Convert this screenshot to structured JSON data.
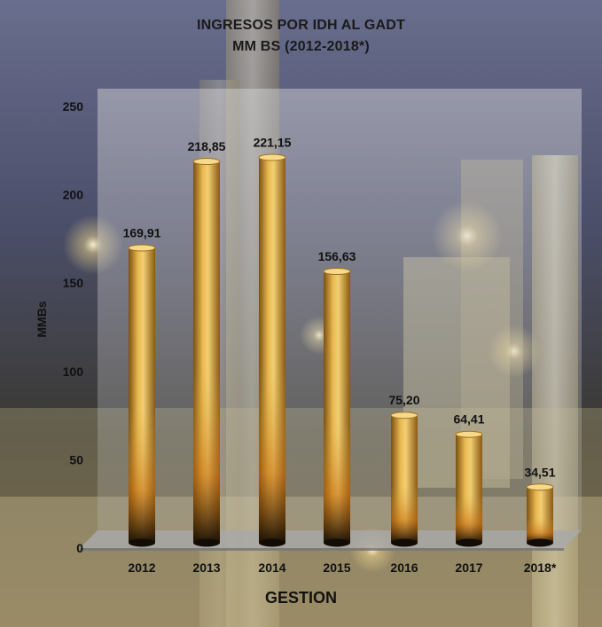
{
  "chart_data": {
    "type": "bar",
    "title": "INGRESOS POR IDH AL GADT",
    "subtitle": "MM BS (2012-2018*)",
    "xlabel": "GESTION",
    "ylabel": "MMBs",
    "categories": [
      "2012",
      "2013",
      "2014",
      "2015",
      "2016",
      "2017",
      "2018*"
    ],
    "values": [
      169.91,
      218.85,
      221.15,
      156.63,
      75.2,
      64.41,
      34.51
    ],
    "data_labels": [
      "169,91",
      "218,85",
      "221,15",
      "156,63",
      "75,20",
      "64,41",
      "34,51"
    ],
    "ylim": [
      0,
      250
    ],
    "yticks": [
      "0",
      "50",
      "100",
      "150",
      "200",
      "250"
    ],
    "grid": false,
    "legend": "none",
    "bar_color": "#d4a23c",
    "bar_dark_color": "#120c04"
  }
}
